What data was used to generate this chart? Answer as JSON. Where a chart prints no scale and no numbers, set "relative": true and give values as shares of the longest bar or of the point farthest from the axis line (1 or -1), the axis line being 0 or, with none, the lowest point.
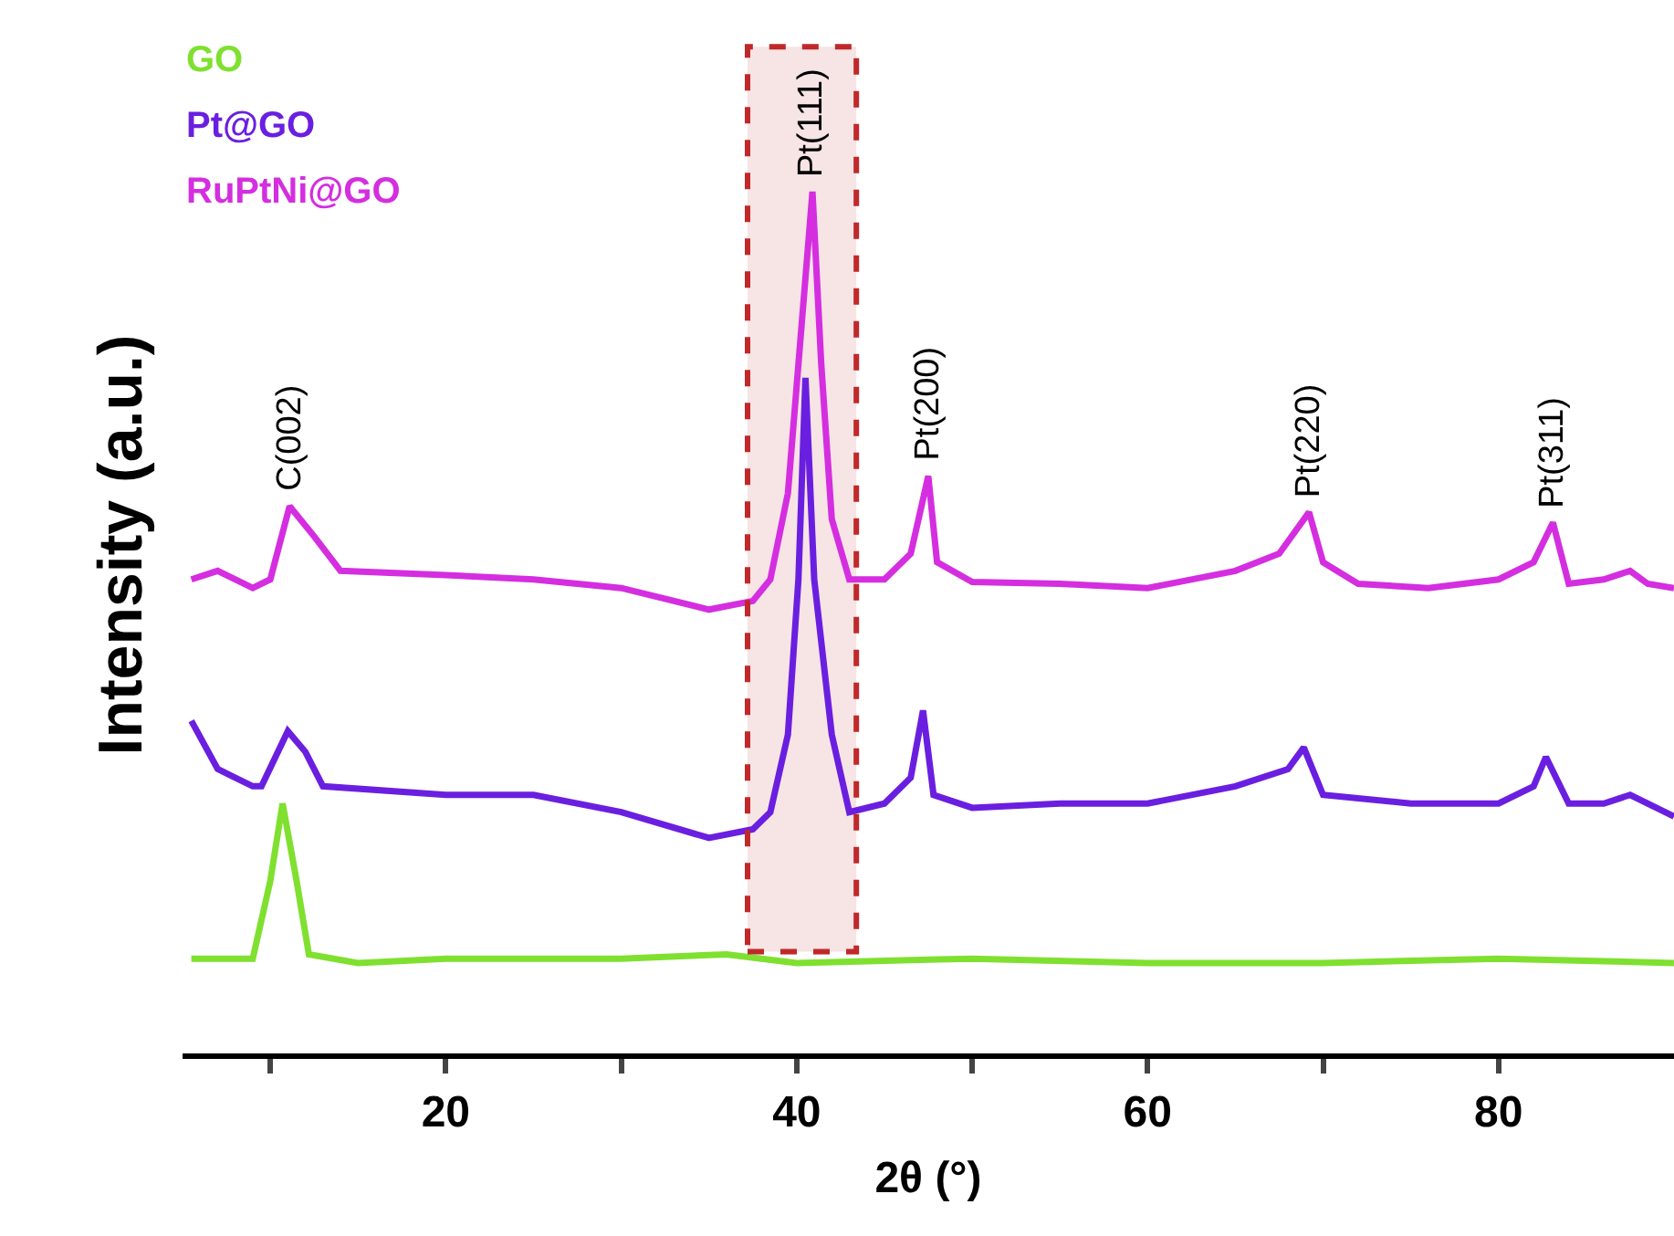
{
  "chart_data": {
    "type": "line",
    "relative": true,
    "xlabel": "2θ (°)",
    "ylabel": "Intensity (a.u.)",
    "xlim": [
      5,
      90
    ],
    "xticks": [
      {
        "value": 10,
        "label": null
      },
      20,
      {
        "value": 30,
        "label": null
      },
      40,
      {
        "value": 50,
        "label": null
      },
      60,
      {
        "value": 70,
        "label": null
      },
      80
    ],
    "legend": "top left",
    "grid": false,
    "marker": "none",
    "line_style": "solid",
    "bands": [
      {
        "axis": "x",
        "from": 37.2,
        "to": 43.4,
        "label": null,
        "color": "#c0282a"
      }
    ],
    "annotations": [
      {
        "text": "C(002)",
        "x": 11.1,
        "y": 0.635
      },
      {
        "text": "Pt(111)",
        "x": 40.9,
        "y": 1.0
      },
      {
        "text": "Pt(200)",
        "x": 47.5,
        "y": 0.67
      },
      {
        "text": "Pt(220)",
        "x": 69.2,
        "y": 0.628
      },
      {
        "text": "Pt(311)",
        "x": 83.1,
        "y": 0.616
      }
    ],
    "series": [
      {
        "name": "GO",
        "color": "#7fe030",
        "x": [
          5.5,
          9,
          10,
          10.7,
          11.5,
          12.2,
          15,
          20,
          30,
          36,
          40,
          50,
          60,
          70,
          80,
          90
        ],
        "values": [
          0.11,
          0.11,
          0.2,
          0.29,
          0.2,
          0.115,
          0.105,
          0.11,
          0.11,
          0.115,
          0.105,
          0.11,
          0.105,
          0.105,
          0.11,
          0.105
        ]
      },
      {
        "name": "Pt@GO",
        "color": "#6a1fe0",
        "x": [
          5.5,
          7,
          9,
          9.5,
          11,
          12,
          13,
          20,
          25,
          30,
          35,
          37.5,
          38.5,
          39.5,
          40.1,
          40.5,
          41,
          42,
          43,
          45,
          46.5,
          47.2,
          47.8,
          50,
          55,
          60,
          65,
          68,
          68.9,
          70,
          75,
          80,
          82,
          82.7,
          84,
          86,
          87.5,
          90
        ],
        "values": [
          0.386,
          0.33,
          0.31,
          0.31,
          0.374,
          0.35,
          0.31,
          0.3,
          0.3,
          0.28,
          0.25,
          0.26,
          0.28,
          0.37,
          0.55,
          0.784,
          0.55,
          0.37,
          0.28,
          0.29,
          0.32,
          0.398,
          0.3,
          0.285,
          0.29,
          0.29,
          0.31,
          0.33,
          0.355,
          0.3,
          0.29,
          0.29,
          0.31,
          0.344,
          0.29,
          0.29,
          0.3,
          0.275
        ]
      },
      {
        "name": "RuPtNi@GO",
        "color": "#d42ee0",
        "x": [
          5.5,
          7,
          9,
          10,
          11.1,
          12.5,
          14,
          20,
          25,
          30,
          35,
          37.5,
          38.5,
          39.5,
          40.3,
          40.9,
          41.4,
          42,
          43,
          45,
          46.5,
          47.5,
          48,
          50,
          55,
          60,
          65,
          67.5,
          69.2,
          70,
          72,
          76,
          80,
          82,
          83.1,
          84,
          86,
          87.5,
          88.5,
          90
        ],
        "values": [
          0.55,
          0.56,
          0.54,
          0.55,
          0.635,
          0.6,
          0.56,
          0.555,
          0.55,
          0.54,
          0.515,
          0.525,
          0.55,
          0.65,
          0.85,
          1.0,
          0.8,
          0.62,
          0.55,
          0.55,
          0.58,
          0.67,
          0.57,
          0.547,
          0.545,
          0.54,
          0.56,
          0.58,
          0.628,
          0.57,
          0.545,
          0.54,
          0.55,
          0.57,
          0.616,
          0.545,
          0.55,
          0.56,
          0.545,
          0.54
        ]
      }
    ]
  }
}
